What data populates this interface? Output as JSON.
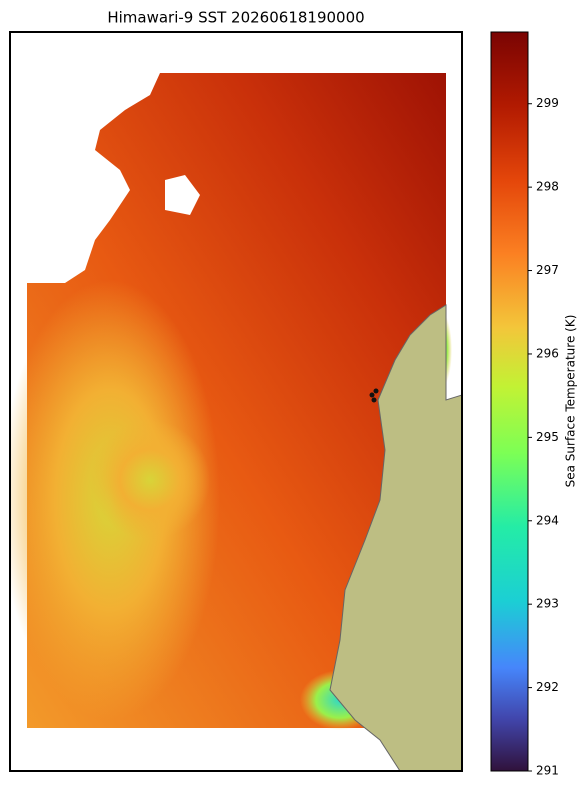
{
  "title": "Himawari-9 SST 20260618190000",
  "colorbar": {
    "label": "Sea Surface Temperature (K)",
    "lim": [
      291,
      299.86
    ],
    "ticks": [
      291,
      292,
      293,
      294,
      295,
      296,
      297,
      298,
      299
    ]
  }
}
